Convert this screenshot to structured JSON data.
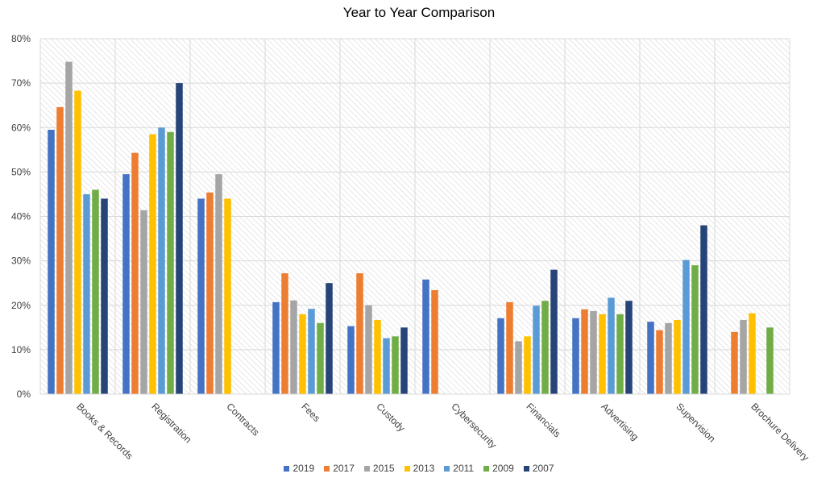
{
  "chart_data": {
    "type": "bar",
    "title": "Year to Year Comparison",
    "xlabel": "",
    "ylabel": "",
    "ylim": [
      0,
      80
    ],
    "yticks": [
      "0%",
      "10%",
      "20%",
      "30%",
      "40%",
      "50%",
      "60%",
      "70%",
      "80%"
    ],
    "grid": true,
    "legend_position": "bottom",
    "categories": [
      "Books & Records",
      "Registration",
      "Contracts",
      "Fees",
      "Custody",
      "Cybersecurity",
      "Financials",
      "Advertising",
      "Supervision",
      "Brochure Delivery"
    ],
    "series": [
      {
        "name": "2019",
        "color": "#4472C4",
        "values": [
          59.5,
          49.5,
          44,
          20.7,
          15.3,
          25.8,
          17.1,
          17.1,
          16.3,
          null
        ]
      },
      {
        "name": "2017",
        "color": "#ED7D31",
        "values": [
          64.6,
          54.3,
          45.4,
          27.2,
          27.2,
          23.4,
          20.7,
          19.1,
          14.4,
          14
        ]
      },
      {
        "name": "2015",
        "color": "#A5A5A5",
        "values": [
          74.8,
          41.4,
          49.5,
          21.1,
          20,
          null,
          11.9,
          18.7,
          16,
          16.7
        ]
      },
      {
        "name": "2013",
        "color": "#FFC000",
        "values": [
          68.3,
          58.5,
          44,
          18,
          16.7,
          null,
          13,
          18,
          16.7,
          18.2
        ]
      },
      {
        "name": "2011",
        "color": "#5B9BD5",
        "values": [
          45,
          60,
          null,
          19.2,
          12.6,
          null,
          19.9,
          21.7,
          30.2,
          null
        ]
      },
      {
        "name": "2009",
        "color": "#70AD47",
        "values": [
          46,
          59,
          null,
          16,
          13,
          null,
          21,
          18,
          29,
          15
        ]
      },
      {
        "name": "2007",
        "color": "#264478",
        "values": [
          44,
          70,
          null,
          25,
          15,
          null,
          28,
          21,
          38,
          null
        ]
      }
    ]
  }
}
